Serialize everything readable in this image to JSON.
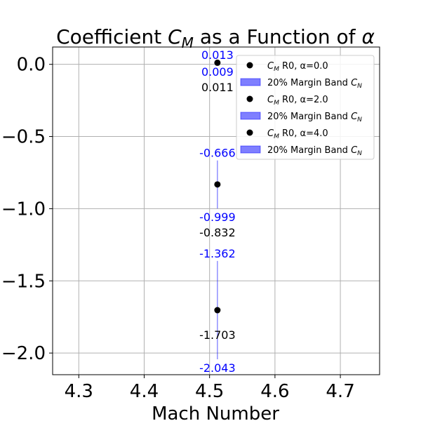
{
  "chart_data": {
    "type": "scatter",
    "title": {
      "prefix": "Coefficient ",
      "symbol": "C",
      "subscript": "M",
      "suffix": " as a Function of ",
      "greek": "α"
    },
    "xlabel": "Mach Number",
    "ylabel": "",
    "xlim": [
      4.26,
      4.76
    ],
    "ylim": [
      -2.15,
      0.12
    ],
    "xticks": [
      4.3,
      4.4,
      4.5,
      4.6,
      4.7
    ],
    "xtick_labels": [
      "4.3",
      "4.4",
      "4.5",
      "4.6",
      "4.7"
    ],
    "yticks": [
      0.0,
      -0.5,
      -1.0,
      -1.5,
      -2.0
    ],
    "ytick_labels": [
      "0.0",
      "−0.5",
      "−1.0",
      "−1.5",
      "−2.0"
    ],
    "grid": true,
    "legend_position": "top-right",
    "colors": {
      "points": "#000000",
      "band": "#0000ff",
      "band_fill": "#7f7fff"
    },
    "series": [
      {
        "alpha_label": "α=0.0",
        "x": 4.512,
        "y": 0.011,
        "band_upper": 0.013,
        "band_lower": 0.009,
        "value_label": "0.011",
        "upper_label": "0.013",
        "lower_label": "0.009"
      },
      {
        "alpha_label": "α=2.0",
        "x": 4.512,
        "y": -0.832,
        "band_upper": -0.666,
        "band_lower": -0.999,
        "value_label": "-0.832",
        "upper_label": "-0.666",
        "lower_label": "-0.999"
      },
      {
        "alpha_label": "α=4.0",
        "x": 4.512,
        "y": -1.703,
        "band_upper": -1.362,
        "band_lower": -2.043,
        "value_label": "-1.703",
        "upper_label": "-1.362",
        "lower_label": "-2.043"
      }
    ],
    "legend": {
      "point_symbol": "C",
      "point_sub": "M",
      "point_mid": " R0, ",
      "band_text": "20% Margin Band ",
      "band_symbol": "C",
      "band_sub": "N"
    }
  }
}
